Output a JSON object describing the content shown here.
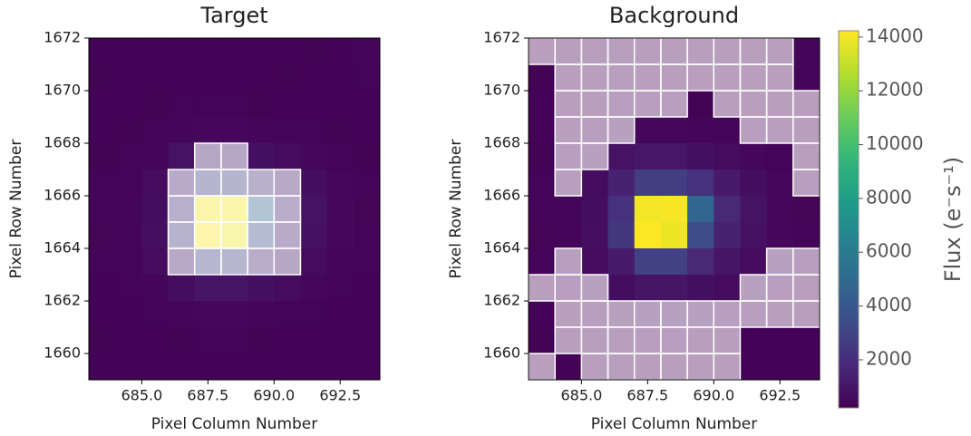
{
  "chart_data": [
    {
      "type": "heatmap",
      "title": "Target",
      "xlabel": "Pixel Column Number",
      "ylabel": "Pixel Row Number",
      "xlim": [
        683,
        694
      ],
      "ylim": [
        1659,
        1672
      ],
      "xticks": [
        {
          "value": 685,
          "label": "685.0"
        },
        {
          "value": 687.5,
          "label": "687.5"
        },
        {
          "value": 690,
          "label": "690.0"
        },
        {
          "value": 692.5,
          "label": "692.5"
        }
      ],
      "yticks": [
        1660,
        1662,
        1664,
        1666,
        1668,
        1670,
        1672
      ],
      "colormap": "viridis",
      "clim": [
        212,
        14231
      ],
      "values": [
        [
          300,
          280,
          290,
          300,
          310,
          300,
          290,
          300,
          320,
          310,
          400
        ],
        [
          320,
          300,
          300,
          310,
          300,
          310,
          300,
          320,
          300,
          300,
          350
        ],
        [
          300,
          310,
          320,
          330,
          340,
          330,
          320,
          310,
          300,
          300,
          310
        ],
        [
          310,
          320,
          340,
          400,
          450,
          450,
          420,
          380,
          340,
          320,
          310
        ],
        [
          320,
          340,
          400,
          900,
          1100,
          1100,
          800,
          600,
          450,
          350,
          320
        ],
        [
          330,
          380,
          600,
          1500,
          2800,
          2800,
          2200,
          1200,
          700,
          450,
          350
        ],
        [
          350,
          400,
          700,
          2200,
          14000,
          14100,
          4800,
          1800,
          900,
          500,
          360
        ],
        [
          360,
          420,
          750,
          2500,
          14231,
          13900,
          3500,
          1500,
          850,
          480,
          350
        ],
        [
          330,
          380,
          600,
          1200,
          2900,
          2900,
          1800,
          1000,
          650,
          420,
          330
        ],
        [
          310,
          340,
          420,
          700,
          1000,
          1000,
          800,
          600,
          450,
          350,
          310
        ],
        [
          300,
          310,
          340,
          400,
          450,
          450,
          420,
          380,
          340,
          310,
          300
        ],
        [
          320,
          300,
          310,
          320,
          330,
          330,
          320,
          310,
          300,
          290,
          300
        ],
        [
          300,
          290,
          300,
          300,
          310,
          310,
          300,
          300,
          300,
          290,
          280
        ]
      ],
      "mask": [
        [
          0,
          0,
          0,
          0,
          0,
          0,
          0,
          0,
          0,
          0,
          0
        ],
        [
          0,
          0,
          0,
          0,
          0,
          0,
          0,
          0,
          0,
          0,
          0
        ],
        [
          0,
          0,
          0,
          0,
          0,
          0,
          0,
          0,
          0,
          0,
          0
        ],
        [
          0,
          0,
          0,
          0,
          0,
          0,
          0,
          0,
          0,
          0,
          0
        ],
        [
          0,
          0,
          0,
          0,
          1,
          1,
          0,
          0,
          0,
          0,
          0
        ],
        [
          0,
          0,
          0,
          1,
          1,
          1,
          1,
          1,
          0,
          0,
          0
        ],
        [
          0,
          0,
          0,
          1,
          1,
          1,
          1,
          1,
          0,
          0,
          0
        ],
        [
          0,
          0,
          0,
          1,
          1,
          1,
          1,
          1,
          0,
          0,
          0
        ],
        [
          0,
          0,
          0,
          1,
          1,
          1,
          1,
          1,
          0,
          0,
          0
        ],
        [
          0,
          0,
          0,
          0,
          0,
          0,
          0,
          0,
          0,
          0,
          0
        ],
        [
          0,
          0,
          0,
          0,
          0,
          0,
          0,
          0,
          0,
          0,
          0
        ],
        [
          0,
          0,
          0,
          0,
          0,
          0,
          0,
          0,
          0,
          0,
          0
        ],
        [
          0,
          0,
          0,
          0,
          0,
          0,
          0,
          0,
          0,
          0,
          0
        ]
      ]
    },
    {
      "type": "heatmap",
      "title": "Background",
      "xlabel": "Pixel Column Number",
      "ylabel": "Pixel Row Number",
      "xlim": [
        683,
        694
      ],
      "ylim": [
        1659,
        1672
      ],
      "xticks": [
        {
          "value": 685,
          "label": "685.0"
        },
        {
          "value": 687.5,
          "label": "687.5"
        },
        {
          "value": 690,
          "label": "690.0"
        },
        {
          "value": 692.5,
          "label": "692.5"
        }
      ],
      "yticks": [
        1660,
        1662,
        1664,
        1666,
        1668,
        1670,
        1672
      ],
      "colormap": "viridis",
      "clim": [
        212,
        14231
      ],
      "colorbar": {
        "label": "Flux (e⁻s⁻¹)",
        "ticks": [
          2000,
          4000,
          6000,
          8000,
          10000,
          12000,
          14000
        ]
      },
      "values": [
        [
          300,
          280,
          290,
          300,
          310,
          300,
          290,
          300,
          320,
          310,
          400
        ],
        [
          320,
          300,
          300,
          310,
          300,
          310,
          300,
          320,
          300,
          300,
          350
        ],
        [
          300,
          310,
          320,
          330,
          340,
          330,
          320,
          310,
          300,
          300,
          310
        ],
        [
          310,
          320,
          340,
          400,
          450,
          450,
          420,
          380,
          340,
          320,
          310
        ],
        [
          320,
          340,
          400,
          900,
          1100,
          1100,
          800,
          600,
          450,
          350,
          320
        ],
        [
          330,
          380,
          600,
          1500,
          2800,
          2800,
          2200,
          1200,
          700,
          450,
          350
        ],
        [
          350,
          400,
          700,
          2200,
          14000,
          14100,
          4800,
          1800,
          900,
          500,
          360
        ],
        [
          360,
          420,
          750,
          2500,
          14231,
          13900,
          3500,
          1500,
          850,
          480,
          350
        ],
        [
          330,
          380,
          600,
          1200,
          2900,
          2900,
          1800,
          1000,
          650,
          420,
          330
        ],
        [
          310,
          340,
          420,
          700,
          1000,
          1000,
          800,
          600,
          450,
          350,
          310
        ],
        [
          300,
          310,
          340,
          400,
          450,
          450,
          420,
          380,
          340,
          310,
          300
        ],
        [
          320,
          300,
          310,
          320,
          330,
          330,
          320,
          310,
          300,
          290,
          300
        ],
        [
          300,
          290,
          300,
          300,
          310,
          310,
          300,
          300,
          300,
          290,
          280
        ]
      ],
      "mask": [
        [
          1,
          1,
          1,
          1,
          1,
          1,
          1,
          1,
          1,
          1,
          0
        ],
        [
          0,
          1,
          1,
          1,
          1,
          1,
          1,
          1,
          1,
          1,
          0
        ],
        [
          0,
          1,
          1,
          1,
          1,
          1,
          0,
          1,
          1,
          1,
          1
        ],
        [
          0,
          1,
          1,
          1,
          0,
          0,
          0,
          0,
          1,
          1,
          1
        ],
        [
          0,
          1,
          1,
          0,
          0,
          0,
          0,
          0,
          0,
          0,
          1
        ],
        [
          0,
          1,
          0,
          0,
          0,
          0,
          0,
          0,
          0,
          0,
          1
        ],
        [
          0,
          0,
          0,
          0,
          0,
          0,
          0,
          0,
          0,
          0,
          0
        ],
        [
          0,
          0,
          0,
          0,
          0,
          0,
          0,
          0,
          0,
          0,
          0
        ],
        [
          0,
          1,
          0,
          0,
          0,
          0,
          0,
          0,
          0,
          1,
          1
        ],
        [
          1,
          1,
          1,
          0,
          0,
          0,
          0,
          0,
          1,
          1,
          1
        ],
        [
          0,
          1,
          1,
          1,
          1,
          1,
          1,
          1,
          1,
          1,
          1
        ],
        [
          0,
          1,
          1,
          1,
          1,
          1,
          1,
          1,
          0,
          0,
          0
        ],
        [
          1,
          0,
          1,
          1,
          1,
          1,
          1,
          1,
          0,
          0,
          0
        ]
      ]
    }
  ]
}
